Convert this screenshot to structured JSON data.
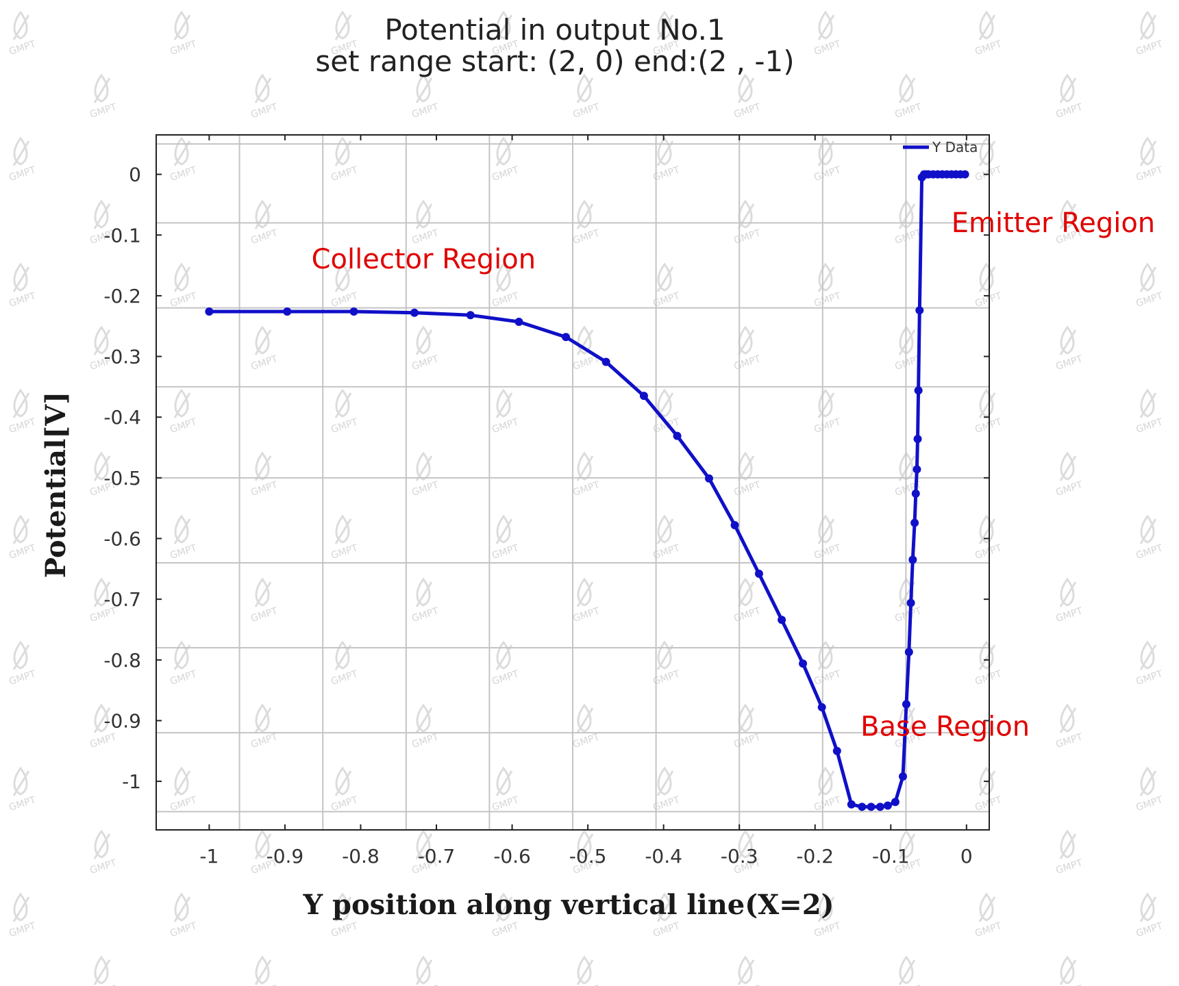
{
  "chart_data": {
    "type": "line",
    "title": "Potential in output No.1",
    "subtitle": "set range start: (2, 0) end:(2 , -1)",
    "xlabel": "Y position along vertical line(X=2)",
    "ylabel": "Potential[V]",
    "xlim": [
      -1.07,
      0.03
    ],
    "ylim": [
      -1.08,
      0.065
    ],
    "x_ticks": [
      -1,
      -0.9,
      -0.8,
      -0.7,
      -0.6,
      -0.5,
      -0.4,
      -0.3,
      -0.2,
      -0.1,
      0
    ],
    "x_tick_labels": [
      "-1",
      "-0.9",
      "-0.8",
      "-0.7",
      "-0.6",
      "-0.5",
      "-0.4",
      "-0.3",
      "-0.2",
      "-0.1",
      "0"
    ],
    "y_ticks": [
      0,
      -0.1,
      -0.2,
      -0.3,
      -0.4,
      -0.5,
      -0.6,
      -0.7,
      -0.8,
      -0.9,
      -1
    ],
    "y_tick_labels": [
      "0",
      "-0.1",
      "-0.2",
      "-0.3",
      "-0.4",
      "-0.5",
      "-0.6",
      "-0.7",
      "-0.8",
      "-0.9",
      "-1"
    ],
    "grid": true,
    "legend_position": "top-right",
    "series": [
      {
        "name": "Y Data",
        "color": "#1010c8",
        "x": [
          -1.0,
          -0.897,
          -0.809,
          -0.729,
          -0.655,
          -0.591,
          -0.529,
          -0.476,
          -0.426,
          -0.382,
          -0.34,
          -0.306,
          -0.274,
          -0.244,
          -0.216,
          -0.191,
          -0.171,
          -0.152,
          -0.138,
          -0.126,
          -0.114,
          -0.104,
          -0.094,
          -0.084,
          -0.0795,
          -0.076,
          -0.0735,
          -0.071,
          -0.0685,
          -0.067,
          -0.0655,
          -0.0645,
          -0.0635,
          -0.062,
          -0.059,
          -0.056,
          -0.053,
          -0.05,
          -0.03,
          -0.01,
          0.0
        ],
        "y": [
          -0.226,
          -0.226,
          -0.226,
          -0.228,
          -0.232,
          -0.243,
          -0.268,
          -0.309,
          -0.365,
          -0.431,
          -0.501,
          -0.578,
          -0.658,
          -0.734,
          -0.806,
          -0.878,
          -0.95,
          -1.038,
          -1.042,
          -1.042,
          -1.042,
          -1.04,
          -1.034,
          -0.992,
          -0.873,
          -0.787,
          -0.706,
          -0.635,
          -0.574,
          -0.526,
          -0.486,
          -0.436,
          -0.356,
          -0.224,
          -0.005,
          0.0,
          0.0,
          0.0,
          0.0,
          0.0,
          0.0
        ],
        "markers_x": [
          -1.0,
          -0.897,
          -0.809,
          -0.729,
          -0.655,
          -0.591,
          -0.529,
          -0.476,
          -0.426,
          -0.382,
          -0.34,
          -0.306,
          -0.274,
          -0.244,
          -0.216,
          -0.191,
          -0.171,
          -0.152,
          -0.138,
          -0.126,
          -0.114,
          -0.104,
          -0.094,
          -0.084,
          -0.0795,
          -0.076,
          -0.0735,
          -0.071,
          -0.0685,
          -0.067,
          -0.0655,
          -0.0645,
          -0.0635,
          -0.062,
          -0.059,
          -0.056,
          -0.053,
          -0.05,
          -0.044,
          -0.038,
          -0.032,
          -0.026,
          -0.02,
          -0.014,
          -0.008,
          -0.002
        ],
        "markers_y": [
          -0.226,
          -0.226,
          -0.226,
          -0.228,
          -0.232,
          -0.243,
          -0.268,
          -0.309,
          -0.365,
          -0.431,
          -0.501,
          -0.578,
          -0.658,
          -0.734,
          -0.806,
          -0.878,
          -0.95,
          -1.038,
          -1.042,
          -1.042,
          -1.042,
          -1.04,
          -1.034,
          -0.992,
          -0.873,
          -0.787,
          -0.706,
          -0.635,
          -0.574,
          -0.526,
          -0.486,
          -0.436,
          -0.356,
          -0.224,
          -0.005,
          0.0,
          0.0,
          0.0,
          0.0,
          0.0,
          0.0,
          0.0,
          0.0,
          0.0,
          0.0,
          0.0
        ]
      }
    ],
    "annotations": [
      {
        "text": "Collector Region",
        "x": -0.865,
        "y": -0.155
      },
      {
        "text": "Emitter Region",
        "x": -0.02,
        "y": -0.095
      },
      {
        "text": "Base Region",
        "x": -0.14,
        "y": -0.925
      }
    ],
    "annotation_color": "#e00000"
  },
  "watermark": {
    "text": "GMPT"
  }
}
